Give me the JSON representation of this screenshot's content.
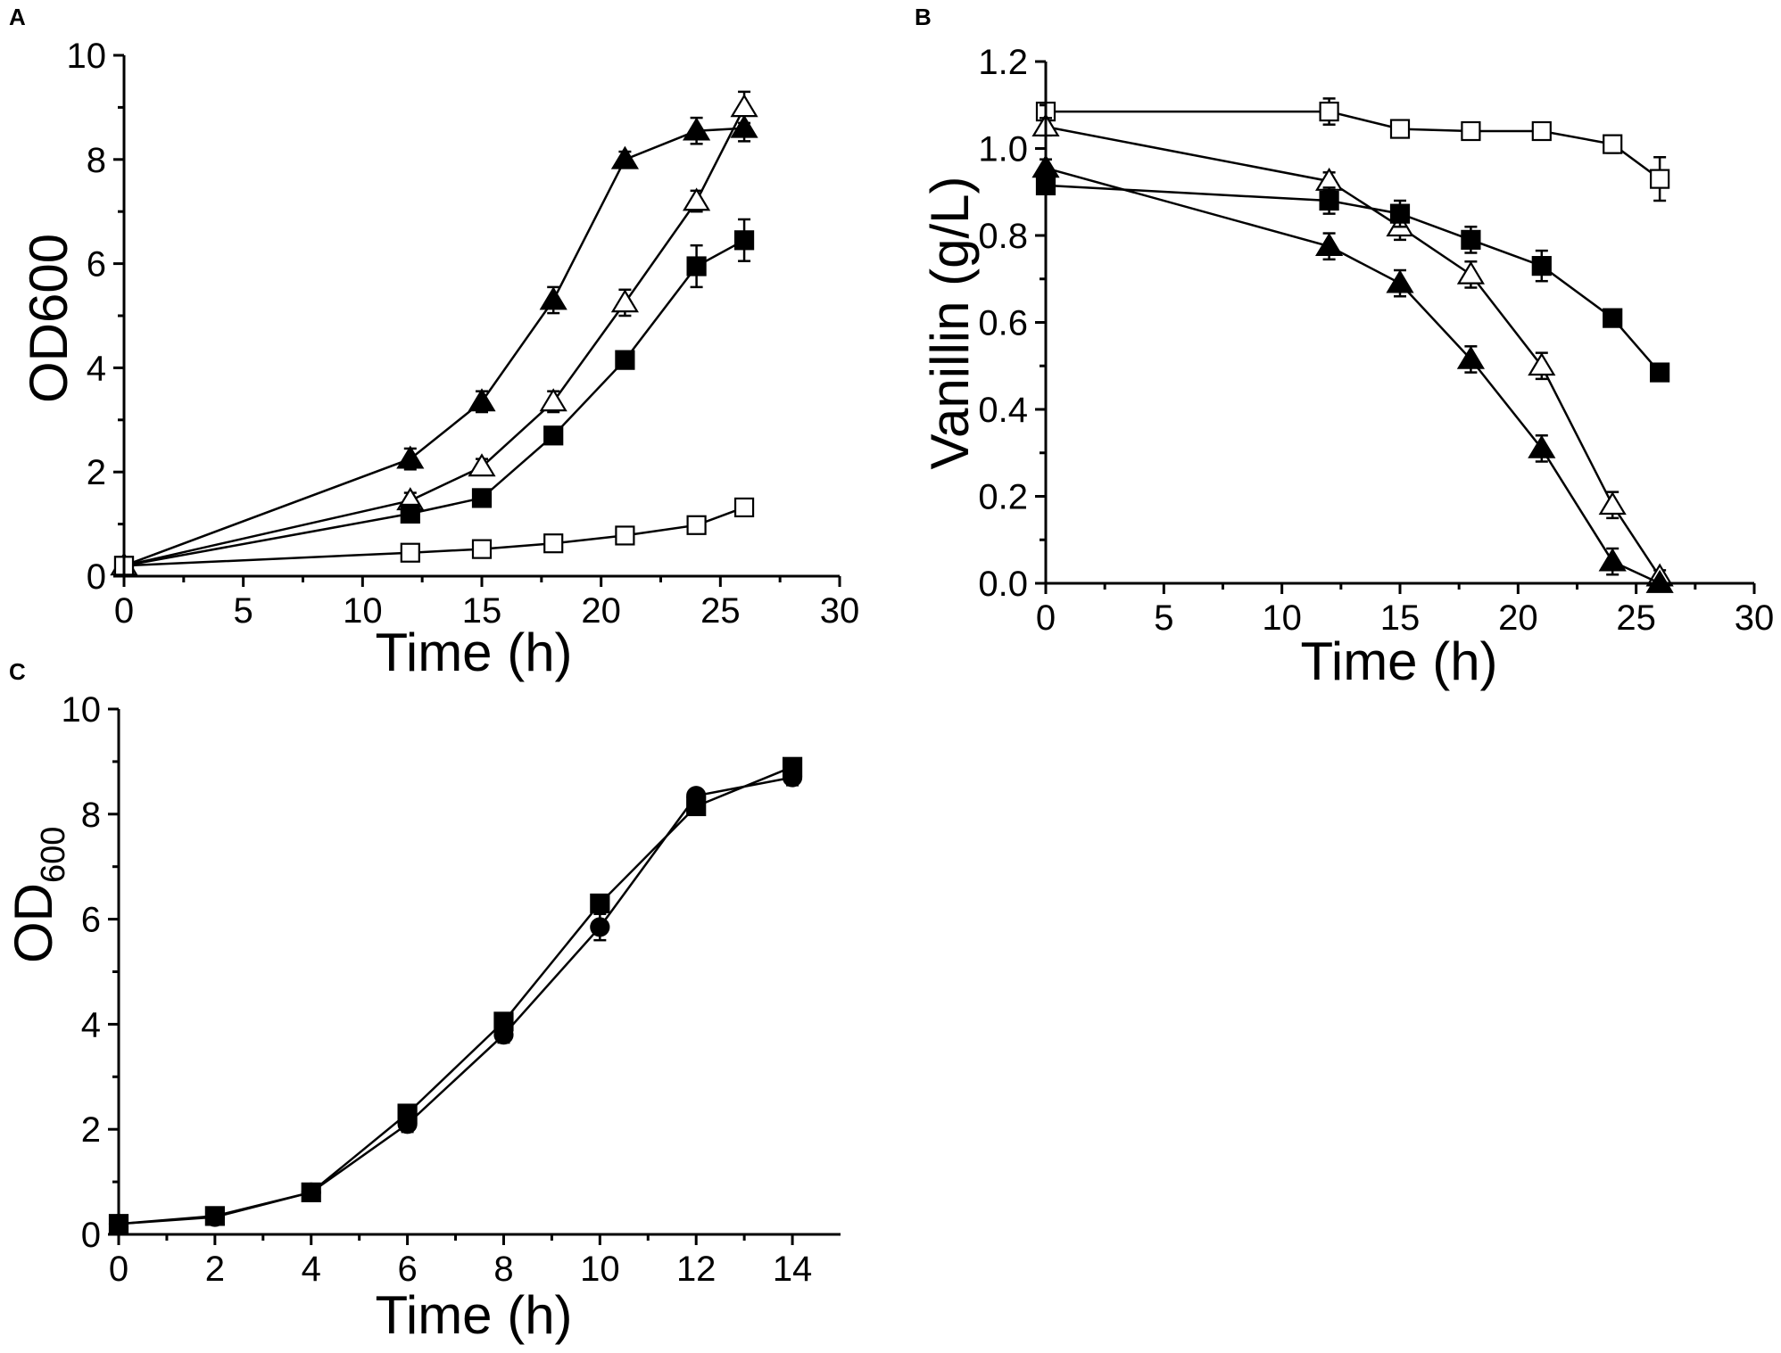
{
  "chart_data": [
    {
      "panel": "A",
      "type": "line",
      "title": "",
      "xlabel": "Time (h)",
      "ylabel": "OD600",
      "xlim": [
        0,
        30
      ],
      "ylim": [
        0,
        10
      ],
      "xticks": [
        "0",
        "5",
        "10",
        "15",
        "20",
        "25",
        "30"
      ],
      "yticks": [
        "0",
        "2",
        "4",
        "6",
        "8",
        "10"
      ],
      "series": [
        {
          "name": "filled triangle",
          "marker": "triangle-filled",
          "x": [
            0,
            12,
            15,
            18,
            21,
            24,
            26
          ],
          "y": [
            0.2,
            2.25,
            3.35,
            5.3,
            8.0,
            8.55,
            8.6
          ],
          "err": [
            0.05,
            0.2,
            0.2,
            0.25,
            0.15,
            0.25,
            0.25
          ]
        },
        {
          "name": "open triangle",
          "marker": "triangle-open",
          "x": [
            0,
            12,
            15,
            18,
            21,
            24,
            26
          ],
          "y": [
            0.2,
            1.45,
            2.1,
            3.35,
            5.25,
            7.2,
            9.0
          ],
          "err": [
            0.05,
            0.15,
            0.15,
            0.2,
            0.25,
            0.2,
            0.3
          ]
        },
        {
          "name": "filled square",
          "marker": "square-filled",
          "x": [
            0,
            12,
            15,
            18,
            21,
            24,
            26
          ],
          "y": [
            0.2,
            1.2,
            1.5,
            2.7,
            4.15,
            5.95,
            6.45
          ],
          "err": [
            0.05,
            0.1,
            0.1,
            0.15,
            0.15,
            0.4,
            0.4
          ]
        },
        {
          "name": "open square",
          "marker": "square-open",
          "x": [
            0,
            12,
            15,
            18,
            21,
            24,
            26
          ],
          "y": [
            0.2,
            0.45,
            0.52,
            0.63,
            0.78,
            0.98,
            1.32
          ],
          "err": [
            0.05,
            0.15,
            0.15,
            0.15,
            0.15,
            0.15,
            0.15
          ]
        }
      ]
    },
    {
      "panel": "B",
      "type": "line",
      "title": "",
      "xlabel": "Time (h)",
      "ylabel": "Vanillin (g/L)",
      "xlim": [
        0,
        30
      ],
      "ylim": [
        0,
        1.2
      ],
      "xticks": [
        "0",
        "5",
        "10",
        "15",
        "20",
        "25",
        "30"
      ],
      "yticks": [
        "0.0",
        "0.2",
        "0.4",
        "0.6",
        "0.8",
        "1.0",
        "1.2"
      ],
      "series": [
        {
          "name": "open square",
          "marker": "square-open",
          "x": [
            0,
            12,
            15,
            18,
            21,
            24,
            26
          ],
          "y": [
            1.085,
            1.085,
            1.045,
            1.04,
            1.04,
            1.01,
            0.93
          ],
          "err": [
            0.02,
            0.03,
            0.015,
            0.015,
            0.015,
            0.02,
            0.05
          ]
        },
        {
          "name": "open triangle",
          "marker": "triangle-open",
          "x": [
            0,
            12,
            15,
            18,
            21,
            24,
            26
          ],
          "y": [
            1.05,
            0.925,
            0.82,
            0.71,
            0.5,
            0.18,
            0.015
          ],
          "err": [
            0.02,
            0.02,
            0.03,
            0.03,
            0.03,
            0.03,
            0.015
          ]
        },
        {
          "name": "filled square",
          "marker": "square-filled",
          "x": [
            0,
            12,
            15,
            18,
            21,
            24,
            26
          ],
          "y": [
            0.915,
            0.88,
            0.85,
            0.79,
            0.73,
            0.61,
            0.485
          ],
          "err": [
            0.02,
            0.03,
            0.03,
            0.03,
            0.035,
            0.015,
            0.015
          ]
        },
        {
          "name": "filled triangle",
          "marker": "triangle-filled",
          "x": [
            0,
            12,
            15,
            18,
            21,
            24,
            26
          ],
          "y": [
            0.955,
            0.775,
            0.69,
            0.515,
            0.31,
            0.05,
            0.0
          ],
          "err": [
            0.02,
            0.03,
            0.03,
            0.03,
            0.03,
            0.03,
            0.0
          ]
        }
      ]
    },
    {
      "panel": "C",
      "type": "line",
      "title": "",
      "xlabel": "Time (h)",
      "ylabel": "OD",
      "ylabel_sub": "600",
      "xlim": [
        0,
        15
      ],
      "ylim": [
        0,
        10
      ],
      "xticks": [
        "0",
        "2",
        "4",
        "6",
        "8",
        "10",
        "12",
        "14"
      ],
      "yticks": [
        "0",
        "2",
        "4",
        "6",
        "8",
        "10"
      ],
      "series": [
        {
          "name": "filled square",
          "marker": "square-filled",
          "x": [
            0,
            2,
            4,
            6,
            8,
            10,
            12,
            14
          ],
          "y": [
            0.2,
            0.35,
            0.8,
            2.3,
            4.05,
            6.3,
            8.15,
            8.9
          ],
          "err": [
            0.05,
            0.05,
            0.05,
            0.1,
            0.1,
            0.15,
            0.15,
            0.15
          ]
        },
        {
          "name": "filled circle",
          "marker": "circle-filled",
          "x": [
            0,
            2,
            4,
            6,
            8,
            10,
            12,
            14
          ],
          "y": [
            0.2,
            0.33,
            0.8,
            2.1,
            3.8,
            5.85,
            8.35,
            8.7
          ],
          "err": [
            0.05,
            0.05,
            0.05,
            0.15,
            0.15,
            0.25,
            0.1,
            0.15
          ]
        }
      ]
    }
  ]
}
